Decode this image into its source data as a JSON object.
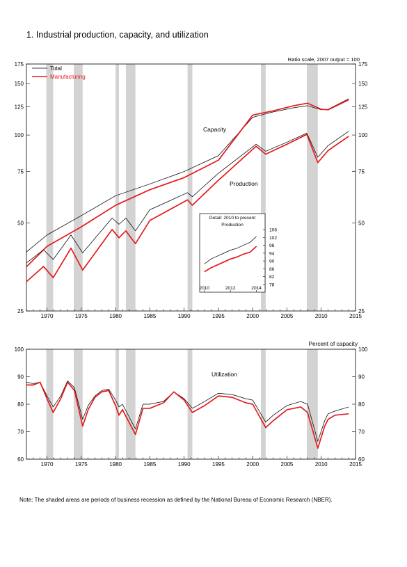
{
  "figure": {
    "title": "1.  Industrial production, capacity, and utilization",
    "note": "Note: The shaded areas are periods of business recession as defined by the National Bureau of Economic Research (NBER).",
    "colors": {
      "total": "#000000",
      "manufacturing": "#e41a1c",
      "recession": "#d3d3d3",
      "axis": "#000000"
    },
    "recessions": [
      [
        1969.9,
        1970.9
      ],
      [
        1973.9,
        1975.2
      ],
      [
        1980.0,
        1980.5
      ],
      [
        1981.5,
        1982.9
      ],
      [
        1990.5,
        1991.2
      ],
      [
        2001.2,
        2001.9
      ],
      [
        2007.9,
        2009.5
      ]
    ]
  },
  "chart_data": [
    {
      "type": "line",
      "title": "",
      "scale_note": "Ratio scale, 2007 output = 100",
      "xlim": [
        1967,
        2015
      ],
      "ylim": [
        25,
        175
      ],
      "y_scale": "log",
      "x_ticks": [
        1970,
        1975,
        1980,
        1985,
        1990,
        1995,
        2000,
        2005,
        2010,
        2015
      ],
      "y_ticks": [
        25,
        50,
        75,
        100,
        125,
        150,
        175
      ],
      "legend": {
        "placement": "top-left",
        "entries": [
          "Total",
          "Manufacturing"
        ]
      },
      "annotations": {
        "capacity": "Capacity",
        "production": "Production"
      },
      "series": [
        {
          "name": "Total",
          "role": "capacity",
          "color": "#000000",
          "x": [
            1967,
            1970,
            1975,
            1980,
            1985,
            1990,
            1995,
            2000,
            2003,
            2006,
            2008,
            2010,
            2011,
            2014
          ],
          "values": [
            39.8,
            45.5,
            53,
            62,
            68,
            75,
            85,
            115,
            120,
            124,
            126,
            122,
            122.5,
            133
          ]
        },
        {
          "name": "Manufacturing",
          "role": "capacity",
          "color": "#e41a1c",
          "x": [
            1967,
            1970,
            1975,
            1980,
            1985,
            1990,
            1995,
            2000,
            2003,
            2006,
            2008,
            2010,
            2011,
            2014
          ],
          "values": [
            35.4,
            41.6,
            48.5,
            57.5,
            65,
            71.5,
            82,
            117,
            121,
            126,
            128.5,
            122.5,
            122,
            132
          ]
        },
        {
          "name": "Total",
          "role": "production",
          "color": "#000000",
          "x": [
            1967,
            1969.5,
            1970.9,
            1973.5,
            1975.2,
            1979.5,
            1980.5,
            1981.5,
            1982.9,
            1985,
            1990.5,
            1991.2,
            1995,
            2000.5,
            2001.9,
            2005,
            2007.9,
            2009.5,
            2011,
            2014
          ],
          "values": [
            36.5,
            40.5,
            37.5,
            45.5,
            39.5,
            52,
            49.5,
            52,
            47,
            55.5,
            63.5,
            61.5,
            74,
            93,
            88,
            94.5,
            101.5,
            84,
            92,
            103
          ]
        },
        {
          "name": "Manufacturing",
          "role": "production",
          "color": "#e41a1c",
          "x": [
            1967,
            1969.5,
            1970.9,
            1973.5,
            1975.2,
            1979.5,
            1980.5,
            1981.5,
            1982.9,
            1985,
            1990.5,
            1991.2,
            1995,
            2000.5,
            2001.9,
            2005,
            2007.9,
            2009.5,
            2011,
            2014
          ],
          "values": [
            31.5,
            35.5,
            32.5,
            41,
            34.5,
            47.5,
            44.5,
            47,
            42.5,
            51,
            60,
            57.5,
            70,
            91.5,
            86,
            93,
            100.5,
            80.5,
            88.5,
            99
          ]
        }
      ],
      "inset": {
        "title": "Detail: 2010 to present",
        "subtitle": "Production",
        "xlim": [
          2009.8,
          2014.5
        ],
        "ylim": [
          78,
          106
        ],
        "x_ticks": [
          2010,
          2012,
          2014
        ],
        "y_ticks": [
          78,
          82,
          86,
          90,
          94,
          98,
          102,
          106
        ],
        "series": [
          {
            "name": "Total",
            "color": "#000000",
            "x": [
              2010,
              2010.5,
              2011,
              2011.5,
              2012,
              2012.5,
              2013,
              2013.5,
              2014
            ],
            "values": [
              88.5,
              91,
              92.5,
              94,
              95.5,
              96.5,
              98,
              99.5,
              102.5
            ]
          },
          {
            "name": "Manufacturing",
            "color": "#e41a1c",
            "x": [
              2010,
              2010.5,
              2011,
              2011.5,
              2012,
              2012.5,
              2013,
              2013.5,
              2014
            ],
            "values": [
              84.5,
              86.5,
              88,
              89.5,
              91,
              92,
              93.5,
              94.5,
              97.5
            ]
          }
        ]
      }
    },
    {
      "type": "line",
      "title": "",
      "scale_note": "Percent of capacity",
      "xlim": [
        1967,
        2015
      ],
      "ylim": [
        60,
        100
      ],
      "y_scale": "linear",
      "x_ticks": [
        1970,
        1975,
        1980,
        1985,
        1990,
        1995,
        2000,
        2005,
        2010,
        2015
      ],
      "y_ticks": [
        60,
        70,
        80,
        90,
        100
      ],
      "annotations": {
        "utilization": "Utilization"
      },
      "series": [
        {
          "name": "Total",
          "color": "#000000",
          "x": [
            1967,
            1968,
            1969,
            1970,
            1970.9,
            1972,
            1973,
            1974,
            1975.2,
            1976,
            1977,
            1978,
            1979,
            1980,
            1980.5,
            1981,
            1982.9,
            1984,
            1985,
            1987,
            1988.5,
            1990,
            1991.2,
            1993,
            1995,
            1997,
            1999,
            2000,
            2001.9,
            2003,
            2005,
            2007,
            2008,
            2009.5,
            2010.5,
            2011,
            2012,
            2014
          ],
          "values": [
            88,
            87.5,
            88,
            83,
            79,
            83,
            88.5,
            86,
            74.5,
            79.5,
            83,
            85,
            85.5,
            81.5,
            79,
            80,
            71,
            80,
            80,
            81,
            84.5,
            82,
            78.5,
            81,
            84,
            83.5,
            82,
            81.5,
            73.5,
            76,
            79.5,
            81,
            80,
            66.5,
            74,
            76.5,
            77.5,
            79
          ]
        },
        {
          "name": "Manufacturing",
          "color": "#e41a1c",
          "x": [
            1967,
            1968,
            1969,
            1970,
            1970.9,
            1972,
            1973,
            1974,
            1975.2,
            1976,
            1977,
            1978,
            1979,
            1980,
            1980.5,
            1981,
            1982.9,
            1984,
            1985,
            1987,
            1988.5,
            1990,
            1991.2,
            1993,
            1995,
            1997,
            1999,
            2000,
            2001.9,
            2003,
            2005,
            2007,
            2008,
            2009.5,
            2010.5,
            2011,
            2012,
            2014
          ],
          "values": [
            87,
            87,
            88,
            82,
            77,
            82,
            88,
            85,
            72,
            78,
            82.5,
            84.5,
            85,
            79.5,
            76,
            78,
            69,
            78.5,
            78.5,
            80.5,
            84.5,
            81.5,
            77,
            79.5,
            83,
            82.5,
            80.5,
            80,
            71.5,
            74,
            78,
            79,
            77,
            64,
            72,
            74.5,
            76,
            76.5
          ]
        }
      ]
    }
  ]
}
